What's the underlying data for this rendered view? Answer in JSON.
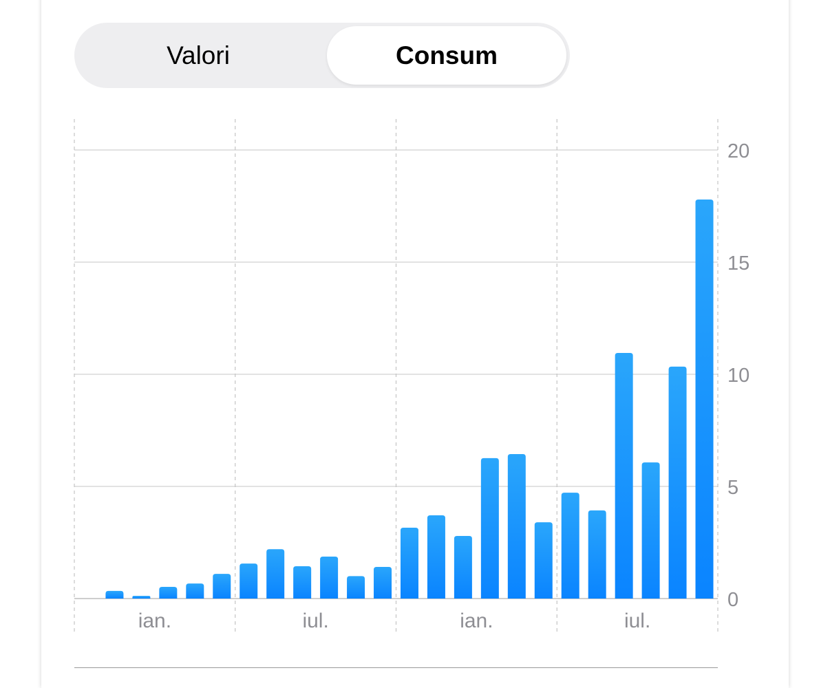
{
  "segmented_control": {
    "options": [
      "Valori",
      "Consum"
    ],
    "selected": "Consum"
  },
  "chart_data": {
    "type": "bar",
    "title": "",
    "xlabel": "",
    "ylabel": "",
    "ylim": [
      0,
      20
    ],
    "yticks": [
      0,
      5,
      10,
      15,
      20
    ],
    "x_tick_labels": [
      "ian.",
      "iul.",
      "ian.",
      "iul."
    ],
    "values": [
      0.34,
      0.12,
      0.52,
      0.67,
      1.1,
      1.56,
      2.2,
      1.44,
      1.87,
      1.0,
      1.41,
      3.16,
      3.71,
      2.79,
      6.26,
      6.44,
      3.4,
      4.72,
      3.93,
      10.95,
      6.07,
      10.34,
      17.79
    ],
    "grid": true,
    "bar_color_top": "#2aa6fb",
    "bar_color_bottom": "#0a84ff"
  }
}
